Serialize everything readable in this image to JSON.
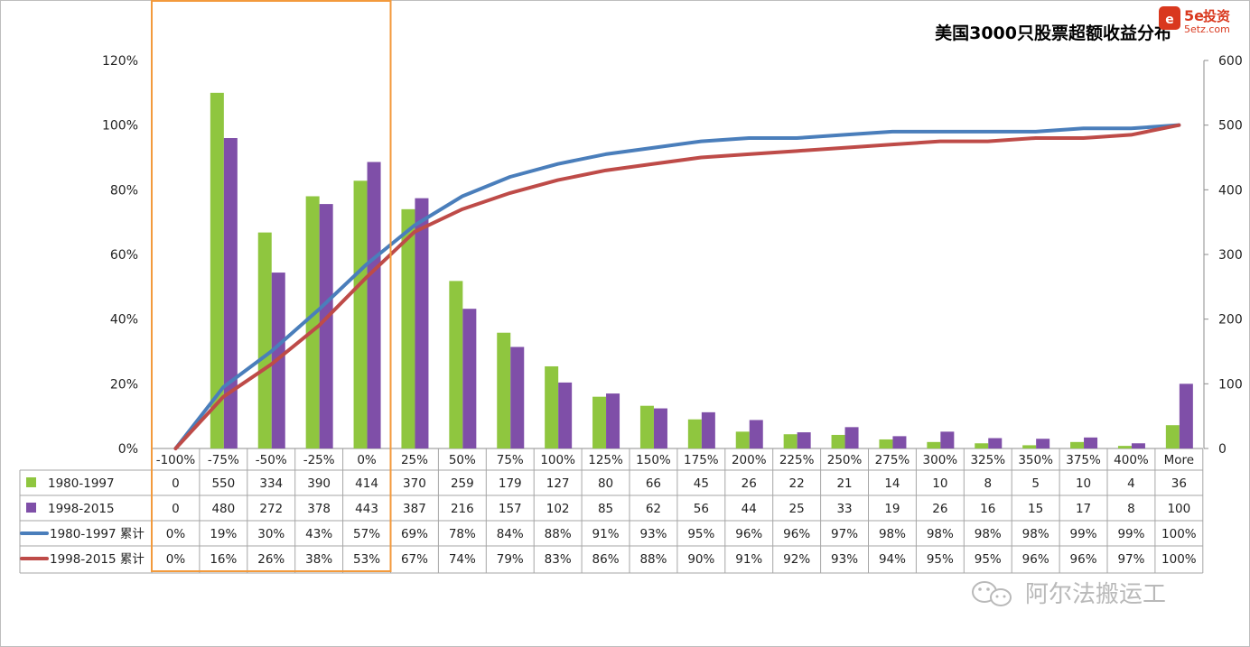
{
  "chart_data": {
    "type": "bar",
    "title": "美国3000只股票超额收益分布",
    "categories": [
      "-100%",
      "-75%",
      "-50%",
      "-25%",
      "0%",
      "25%",
      "50%",
      "75%",
      "100%",
      "125%",
      "150%",
      "175%",
      "200%",
      "225%",
      "250%",
      "275%",
      "300%",
      "325%",
      "350%",
      "375%",
      "400%",
      "More"
    ],
    "left_axis": {
      "ticks": [
        "0%",
        "20%",
        "40%",
        "60%",
        "80%",
        "100%",
        "120%"
      ],
      "ylim": [
        0,
        1.2
      ]
    },
    "right_axis": {
      "ticks": [
        "0",
        "100",
        "200",
        "300",
        "400",
        "500",
        "600"
      ],
      "ylim": [
        0,
        600
      ]
    },
    "series": [
      {
        "name": "1980-1997",
        "type": "bar",
        "color": "#8fc63f",
        "values": [
          0,
          550,
          334,
          390,
          414,
          370,
          259,
          179,
          127,
          80,
          66,
          45,
          26,
          22,
          21,
          14,
          10,
          8,
          5,
          10,
          4,
          36
        ]
      },
      {
        "name": "1998-2015",
        "type": "bar",
        "color": "#7f4fa8",
        "values": [
          0,
          480,
          272,
          378,
          443,
          387,
          216,
          157,
          102,
          85,
          62,
          56,
          44,
          25,
          33,
          19,
          26,
          16,
          15,
          17,
          8,
          100
        ]
      },
      {
        "name": "1980-1997 累计",
        "type": "line",
        "color": "#4a7ebb",
        "values": [
          0,
          19,
          30,
          43,
          57,
          69,
          78,
          84,
          88,
          91,
          93,
          95,
          96,
          96,
          97,
          98,
          98,
          98,
          98,
          99,
          99,
          100
        ],
        "labels": [
          "0%",
          "19%",
          "30%",
          "43%",
          "57%",
          "69%",
          "78%",
          "84%",
          "88%",
          "91%",
          "93%",
          "95%",
          "96%",
          "96%",
          "97%",
          "98%",
          "98%",
          "98%",
          "98%",
          "99%",
          "99%",
          "100%"
        ]
      },
      {
        "name": "1998-2015 累计",
        "type": "line",
        "color": "#be4b48",
        "values": [
          0,
          16,
          26,
          38,
          53,
          67,
          74,
          79,
          83,
          86,
          88,
          90,
          91,
          92,
          93,
          94,
          95,
          95,
          96,
          96,
          97,
          100
        ],
        "labels": [
          "0%",
          "16%",
          "26%",
          "38%",
          "53%",
          "67%",
          "74%",
          "79%",
          "83%",
          "86%",
          "88%",
          "90%",
          "91%",
          "92%",
          "93%",
          "94%",
          "95%",
          "95%",
          "96%",
          "96%",
          "97%",
          "100%"
        ]
      }
    ],
    "highlight": {
      "from_category": "-100%",
      "to_category": "0%",
      "color": "#f39a3c"
    },
    "legend": "data-table"
  },
  "logo": {
    "mark": "5e",
    "name": "投资",
    "url_text": "5etz.com"
  },
  "watermark": "阿尔法搬运工"
}
